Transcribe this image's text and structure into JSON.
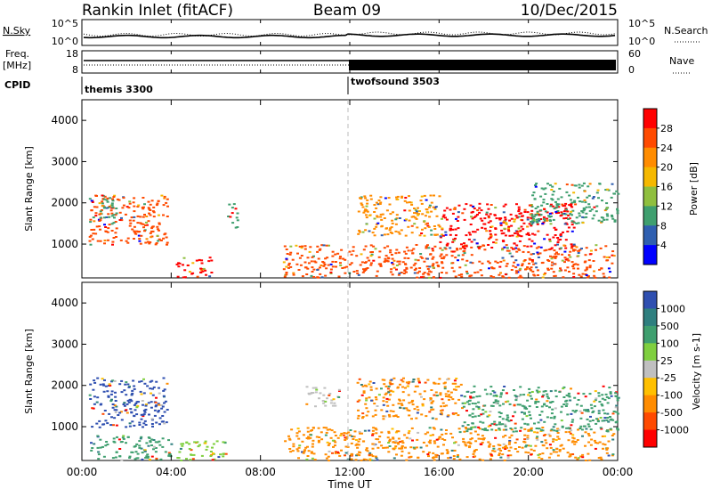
{
  "header": {
    "station": "Rankin Inlet (fitACF)",
    "beam": "Beam 09",
    "date": "10/Dec/2015"
  },
  "top_strip": {
    "left_label": "N.Sky",
    "right_label": "N.Search",
    "left_ticks": [
      "10^5",
      "10^0"
    ],
    "right_ticks": [
      "10^5",
      "10^0"
    ]
  },
  "freq_strip": {
    "left_label_1": "Freq.",
    "left_label_2": "[MHz]",
    "right_label": "Nave",
    "left_ticks": [
      "18",
      "8"
    ],
    "right_ticks": [
      "60",
      "0"
    ]
  },
  "cpid": {
    "label": "CPID",
    "segments": [
      {
        "name": "themis 3300",
        "start_hour": 0
      },
      {
        "name": "twofsound 3503",
        "start_hour": 12
      }
    ]
  },
  "chart_data": {
    "type": "heatmap",
    "xlabel": "Time UT",
    "x_tick_labels": [
      "00:00",
      "04:00",
      "08:00",
      "12:00",
      "16:00",
      "20:00",
      "00:00"
    ],
    "x_range_hours": [
      0,
      24
    ],
    "panels": [
      {
        "id": "power",
        "ylabel": "Slant Range [km]",
        "y_range": [
          180,
          4500
        ],
        "y_ticks": [
          1000,
          2000,
          3000,
          4000
        ],
        "colorbar_label": "Power [dB]",
        "colorbar_ticks": [
          "28",
          "24",
          "20",
          "16",
          "12",
          "8",
          "4"
        ],
        "colorbar_colors": [
          "#ff0000",
          "#ff4a00",
          "#ff8c00",
          "#f5b800",
          "#8fbf3f",
          "#3f9f6f",
          "#2f5fb0",
          "#0000ff"
        ],
        "regions": [
          {
            "t0": 0.3,
            "t1": 3.8,
            "r0": 1000,
            "r1": 2200,
            "color": "#ff4a00"
          },
          {
            "t0": 0.3,
            "t1": 1.5,
            "r0": 1500,
            "r1": 2200,
            "color": "#3f9f6f"
          },
          {
            "t0": 4.2,
            "t1": 5.8,
            "r0": 200,
            "r1": 700,
            "color": "#ff0000"
          },
          {
            "t0": 6.5,
            "t1": 7.0,
            "r0": 1400,
            "r1": 2000,
            "color": "#3f9f6f"
          },
          {
            "t0": 9.0,
            "t1": 12.0,
            "r0": 200,
            "r1": 1000,
            "color": "#ff4a00"
          },
          {
            "t0": 12.0,
            "t1": 23.8,
            "r0": 200,
            "r1": 1000,
            "color": "#ff4a00"
          },
          {
            "t0": 12.3,
            "t1": 16.0,
            "r0": 1200,
            "r1": 2200,
            "color": "#ff8c00"
          },
          {
            "t0": 16.0,
            "t1": 22.0,
            "r0": 900,
            "r1": 2000,
            "color": "#ff0000"
          },
          {
            "t0": 20.0,
            "t1": 24.0,
            "r0": 1500,
            "r1": 2500,
            "color": "#3f9f6f"
          }
        ]
      },
      {
        "id": "velocity",
        "ylabel": "Slant Range [km]",
        "y_range": [
          180,
          4500
        ],
        "y_ticks": [
          1000,
          2000,
          3000,
          4000
        ],
        "colorbar_label": "Velocity [m s-1]",
        "colorbar_ticks": [
          "1000",
          "500",
          "100",
          "25",
          "-25",
          "-100",
          "-500",
          "-1000"
        ],
        "colorbar_colors": [
          "#2f4fb0",
          "#2f7f7f",
          "#3f9f6f",
          "#7fcf3f",
          "#c0c0c0",
          "#ffc000",
          "#ff8c00",
          "#ff4a00",
          "#ff0000"
        ],
        "regions": [
          {
            "t0": 0.3,
            "t1": 3.8,
            "r0": 1000,
            "r1": 2200,
            "color": "#2f4fb0"
          },
          {
            "t0": 0.3,
            "t1": 4.0,
            "r0": 200,
            "r1": 800,
            "color": "#3f9f6f"
          },
          {
            "t0": 4.2,
            "t1": 6.5,
            "r0": 200,
            "r1": 700,
            "color": "#7fcf3f"
          },
          {
            "t0": 9.0,
            "t1": 12.0,
            "r0": 200,
            "r1": 1000,
            "color": "#ff8c00"
          },
          {
            "t0": 10.0,
            "t1": 11.5,
            "r0": 1500,
            "r1": 2000,
            "color": "#c0c0c0"
          },
          {
            "t0": 12.0,
            "t1": 23.8,
            "r0": 200,
            "r1": 1000,
            "color": "#ff8c00"
          },
          {
            "t0": 12.3,
            "t1": 17.0,
            "r0": 1200,
            "r1": 2200,
            "color": "#ff8c00"
          },
          {
            "t0": 17.0,
            "t1": 24.0,
            "r0": 900,
            "r1": 2000,
            "color": "#3f9f6f"
          }
        ]
      }
    ]
  }
}
